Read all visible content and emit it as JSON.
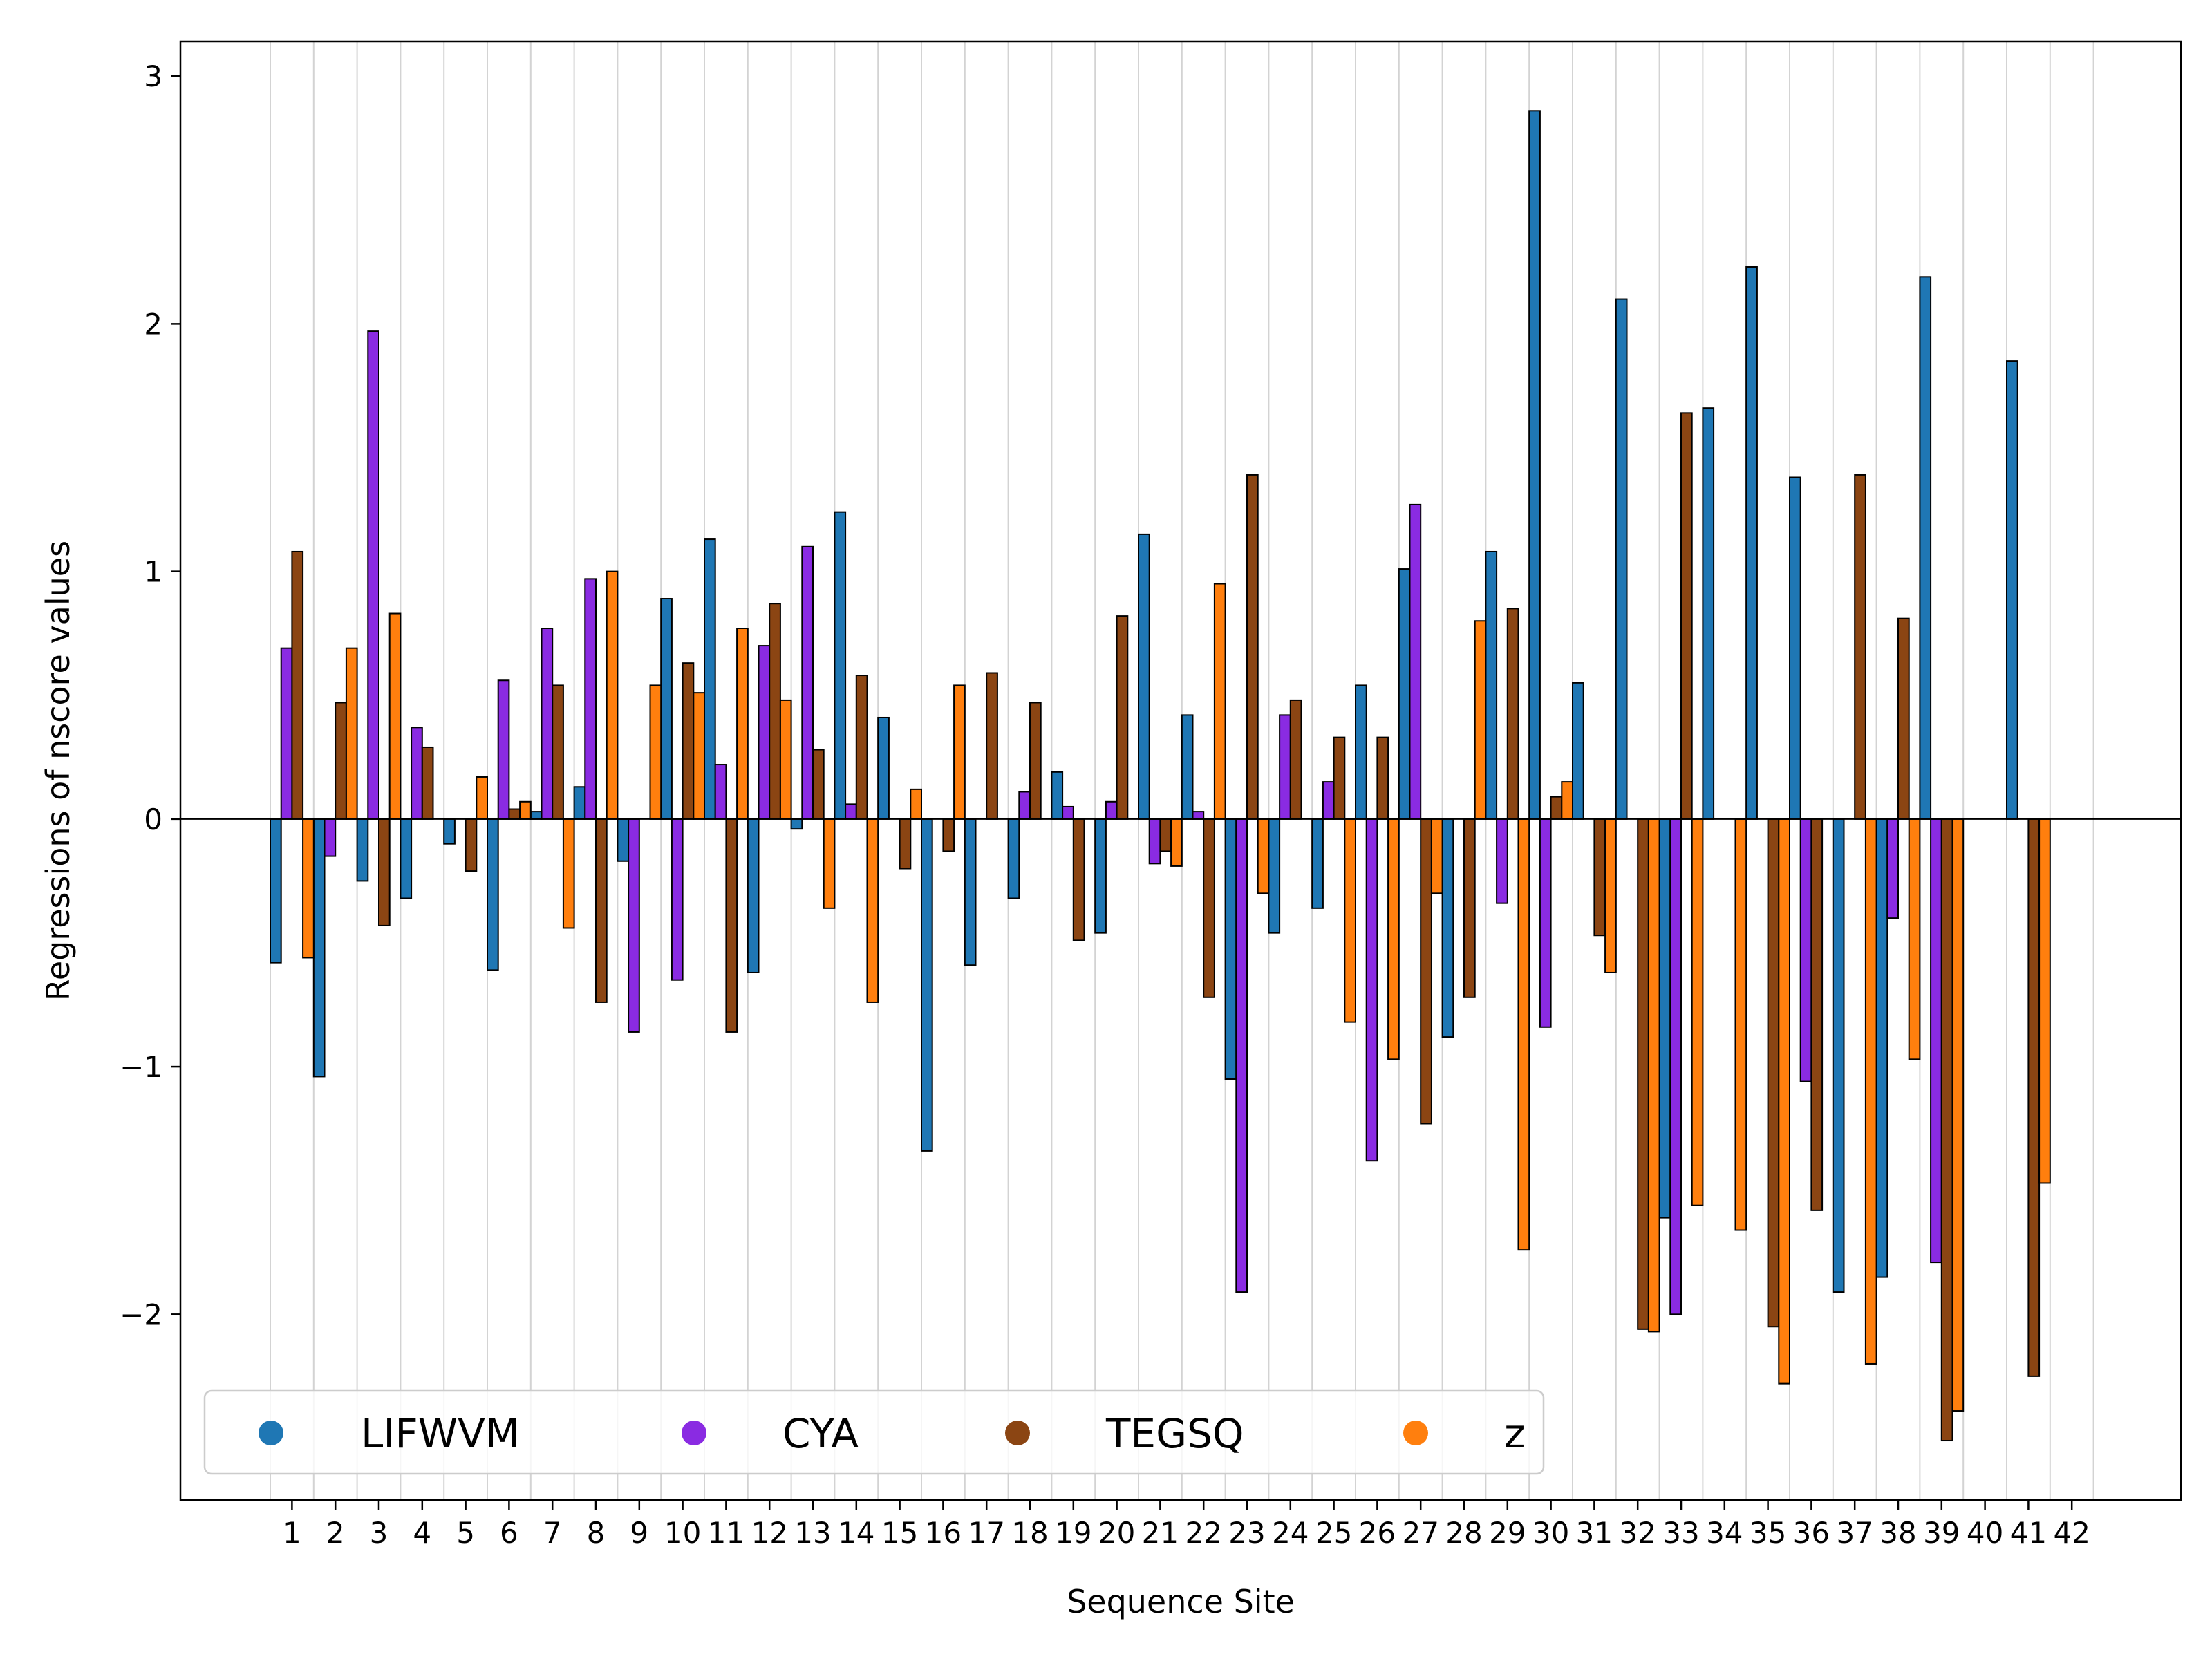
{
  "chart_data": {
    "type": "bar",
    "xlabel": "Sequence Site",
    "ylabel": "Regressions of nscore values",
    "categories": [
      "1",
      "2",
      "3",
      "4",
      "5",
      "6",
      "7",
      "8",
      "9",
      "10",
      "11",
      "12",
      "13",
      "14",
      "15",
      "16",
      "17",
      "18",
      "19",
      "20",
      "21",
      "22",
      "23",
      "24",
      "25",
      "26",
      "27",
      "28",
      "29",
      "30",
      "31",
      "32",
      "33",
      "34",
      "35",
      "36",
      "37",
      "38",
      "39",
      "40",
      "41",
      "42"
    ],
    "ylim": [
      -2.75,
      3.14
    ],
    "yticks": [
      -2,
      -1,
      0,
      1,
      2,
      3
    ],
    "grid": "vertical",
    "legend_position": "bottom-left",
    "series": [
      {
        "name": "LIFWVM",
        "color": "#1f77b4",
        "values": [
          -0.58,
          -1.04,
          -0.25,
          -0.32,
          -0.1,
          -0.61,
          0.03,
          0.13,
          -0.17,
          0.89,
          1.13,
          -0.62,
          -0.04,
          1.24,
          0.41,
          -1.34,
          -0.59,
          -0.32,
          0.19,
          -0.46,
          1.15,
          0.42,
          -1.05,
          -0.46,
          -0.36,
          0.54,
          1.01,
          -0.88,
          1.08,
          2.86,
          0.55,
          2.1,
          -1.61,
          1.66,
          2.23,
          1.38,
          -1.91,
          -1.85,
          2.19,
          null,
          1.85,
          null
        ]
      },
      {
        "name": "CYA",
        "color": "#8a2be2",
        "values": [
          0.69,
          -0.15,
          1.97,
          0.37,
          null,
          0.56,
          0.77,
          0.97,
          -0.86,
          -0.65,
          0.22,
          0.7,
          1.1,
          0.06,
          null,
          null,
          null,
          0.11,
          0.05,
          0.07,
          -0.18,
          0.03,
          -1.91,
          0.42,
          0.15,
          -1.38,
          1.27,
          null,
          -0.34,
          -0.84,
          null,
          null,
          -2.0,
          null,
          null,
          -1.06,
          null,
          -0.4,
          -1.79,
          null,
          null,
          null
        ]
      },
      {
        "name": "TEGSQ",
        "color": "#8b4513",
        "values": [
          1.08,
          0.47,
          -0.43,
          0.29,
          -0.21,
          0.04,
          0.54,
          -0.74,
          null,
          0.63,
          -0.86,
          0.87,
          0.28,
          0.58,
          -0.2,
          -0.13,
          0.59,
          0.47,
          -0.49,
          0.82,
          -0.13,
          -0.72,
          1.39,
          0.48,
          0.33,
          0.33,
          -1.23,
          -0.72,
          0.85,
          0.09,
          -0.47,
          -2.06,
          1.64,
          null,
          -2.05,
          -1.58,
          1.39,
          0.81,
          -2.51,
          null,
          -2.25,
          null
        ]
      },
      {
        "name": "z",
        "color": "#ff7f0e",
        "values": [
          -0.56,
          0.69,
          0.83,
          null,
          0.17,
          0.07,
          -0.44,
          1.0,
          0.54,
          0.51,
          0.77,
          0.48,
          -0.36,
          -0.74,
          0.12,
          0.54,
          null,
          null,
          null,
          null,
          -0.19,
          0.95,
          -0.3,
          null,
          -0.82,
          -0.97,
          -0.3,
          0.8,
          -1.74,
          0.15,
          -0.62,
          -2.07,
          -1.56,
          -1.66,
          -2.28,
          null,
          -2.2,
          -0.97,
          -2.39,
          null,
          -1.47,
          null
        ]
      }
    ]
  }
}
